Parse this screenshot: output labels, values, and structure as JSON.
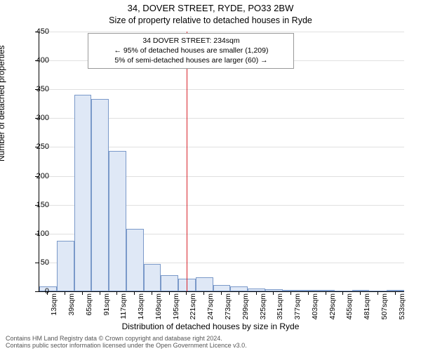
{
  "title_main": "34, DOVER STREET, RYDE, PO33 2BW",
  "title_sub": "Size of property relative to detached houses in Ryde",
  "y_axis_title": "Number of detached properties",
  "x_axis_title": "Distribution of detached houses by size in Ryde",
  "footer_line1": "Contains HM Land Registry data © Crown copyright and database right 2024.",
  "footer_line2": "Contains public sector information licensed under the Open Government Licence v3.0.",
  "annotation": {
    "line1": "34 DOVER STREET: 234sqm",
    "line2": "← 95% of detached houses are smaller (1,209)",
    "line3": "5% of semi-detached houses are larger (60) →"
  },
  "chart": {
    "type": "histogram",
    "y_min": 0,
    "y_max": 450,
    "y_ticks": [
      0,
      50,
      100,
      150,
      200,
      250,
      300,
      350,
      400,
      450
    ],
    "x_ticks": [
      "13sqm",
      "39sqm",
      "65sqm",
      "91sqm",
      "117sqm",
      "143sqm",
      "169sqm",
      "195sqm",
      "221sqm",
      "247sqm",
      "273sqm",
      "299sqm",
      "325sqm",
      "351sqm",
      "377sqm",
      "403sqm",
      "429sqm",
      "455sqm",
      "481sqm",
      "507sqm",
      "533sqm"
    ],
    "bars": [
      {
        "i": 0,
        "v": 8
      },
      {
        "i": 1,
        "v": 88
      },
      {
        "i": 2,
        "v": 340
      },
      {
        "i": 3,
        "v": 333
      },
      {
        "i": 4,
        "v": 243
      },
      {
        "i": 5,
        "v": 108
      },
      {
        "i": 6,
        "v": 48
      },
      {
        "i": 7,
        "v": 28
      },
      {
        "i": 8,
        "v": 22
      },
      {
        "i": 9,
        "v": 24
      },
      {
        "i": 10,
        "v": 11
      },
      {
        "i": 11,
        "v": 8
      },
      {
        "i": 12,
        "v": 5
      },
      {
        "i": 13,
        "v": 4
      },
      {
        "i": 14,
        "v": 2
      },
      {
        "i": 15,
        "v": 2
      },
      {
        "i": 16,
        "v": 2
      },
      {
        "i": 17,
        "v": 0
      },
      {
        "i": 18,
        "v": 2
      },
      {
        "i": 19,
        "v": 0
      },
      {
        "i": 20,
        "v": 2
      }
    ],
    "marker_index": 8.5,
    "bar_fill": "#dfe8f6",
    "bar_stroke": "#7a99c9",
    "grid_color": "#e0e0e0",
    "marker_color": "#d8232a",
    "background": "#ffffff"
  }
}
